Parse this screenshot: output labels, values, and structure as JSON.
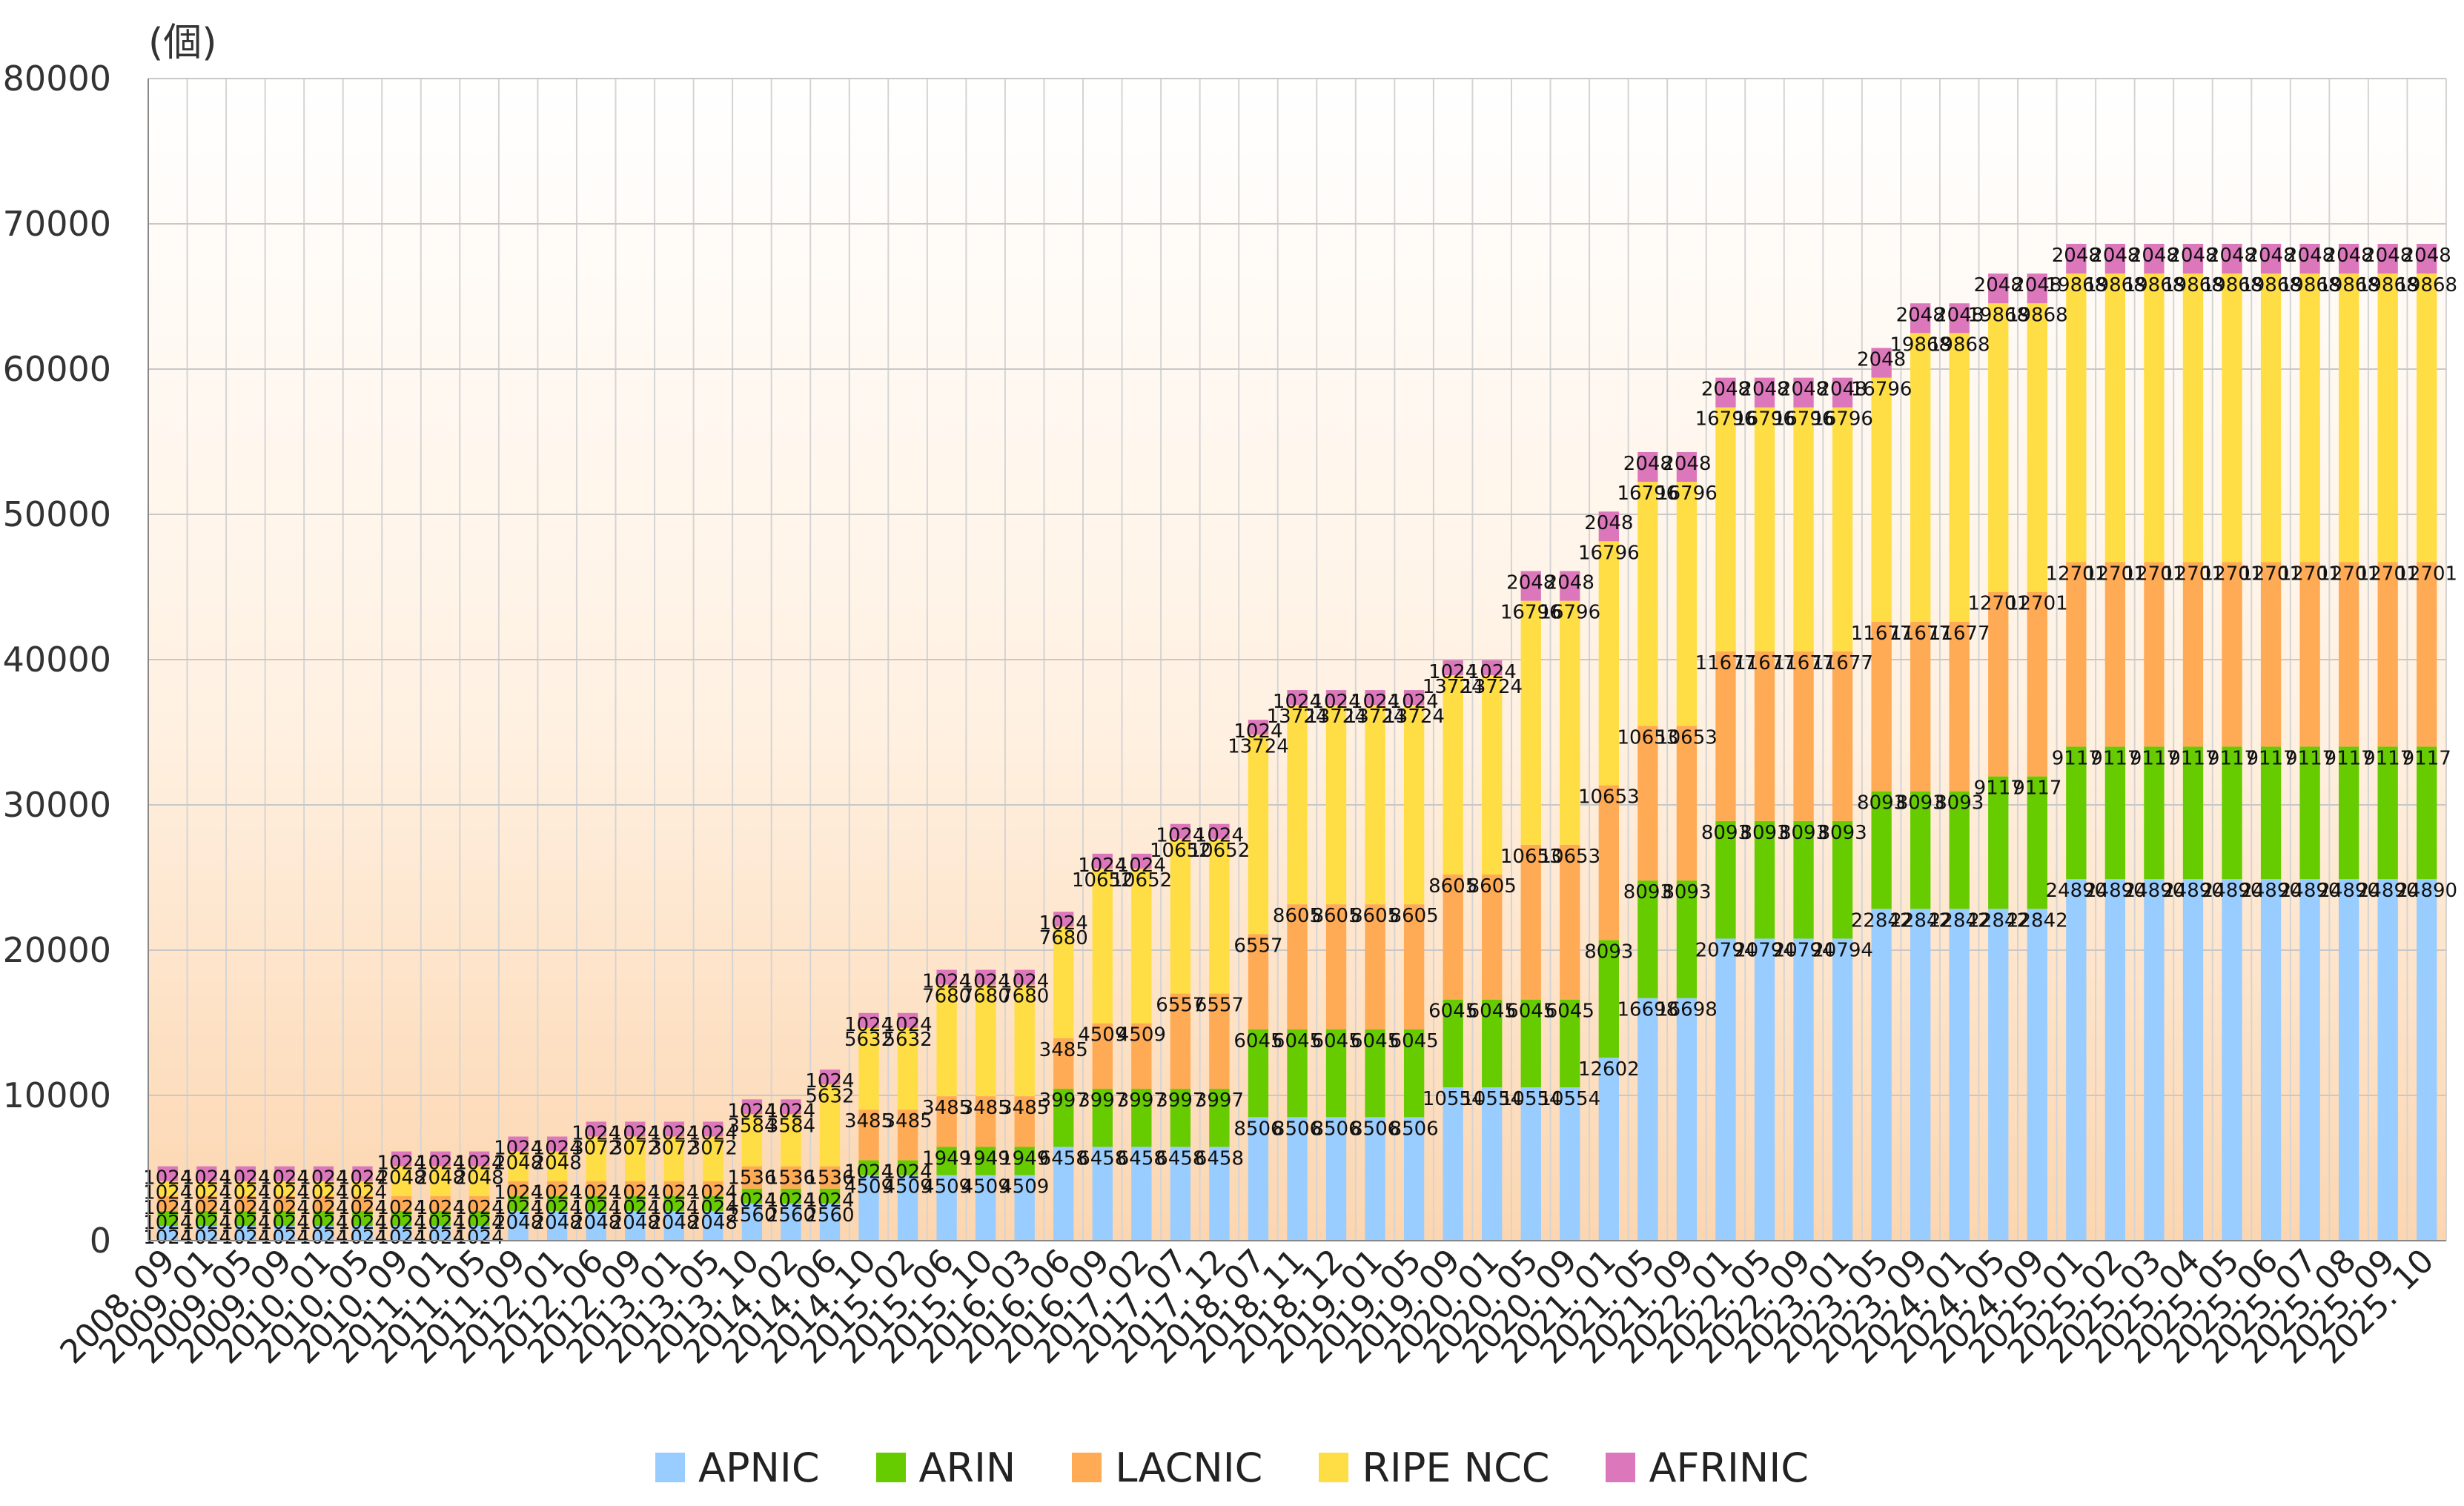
{
  "chart_data": {
    "type": "bar",
    "stacked": true,
    "title": "",
    "ylabel": "(個)",
    "xlabel": "",
    "ylim": [
      0,
      80000
    ],
    "yticks": [
      0,
      10000,
      20000,
      30000,
      40000,
      50000,
      60000,
      70000,
      80000
    ],
    "grid": true,
    "legend_position": "bottom",
    "categories": [
      "2008. 09",
      "2009. 01",
      "2009. 05",
      "2009. 09",
      "2010. 01",
      "2010. 05",
      "2010. 09",
      "2011. 01",
      "2011. 05",
      "2011. 09",
      "2012. 01",
      "2012. 06",
      "2012. 09",
      "2013. 01",
      "2013. 05",
      "2013. 10",
      "2014. 02",
      "2014. 06",
      "2014. 10",
      "2015. 02",
      "2015. 06",
      "2015. 10",
      "2016. 03",
      "2016. 06",
      "2016. 09",
      "2017. 02",
      "2017. 07",
      "2017. 12",
      "2018. 07",
      "2018. 11",
      "2018. 12",
      "2019. 01",
      "2019. 05",
      "2019. 09",
      "2020. 01",
      "2020. 05",
      "2020. 09",
      "2021. 01",
      "2021. 05",
      "2021. 09",
      "2022. 01",
      "2022. 05",
      "2022. 09",
      "2023. 01",
      "2023. 05",
      "2023. 09",
      "2024. 01",
      "2024. 05",
      "2024. 09",
      "2025. 01",
      "2025. 02",
      "2025. 03",
      "2025. 04",
      "2025. 05",
      "2025. 06",
      "2025. 07",
      "2025. 08",
      "2025. 09",
      "2025. 10"
    ],
    "series": [
      {
        "name": "APNIC",
        "color": "#99ccff",
        "values": [
          1024,
          1024,
          1024,
          1024,
          1024,
          1024,
          1024,
          1024,
          1024,
          2048,
          2048,
          2048,
          2048,
          2048,
          2048,
          2560,
          2560,
          2560,
          4509,
          4509,
          4509,
          4509,
          4509,
          6458,
          6458,
          6458,
          6458,
          6458,
          8506,
          8506,
          8506,
          8506,
          8506,
          10554,
          10554,
          10554,
          10554,
          12602,
          16698,
          16698,
          20794,
          20794,
          20794,
          20794,
          22842,
          22842,
          22842,
          22842,
          22842,
          24890,
          24890,
          24890,
          24890,
          24890,
          24890,
          24890,
          24890,
          24890,
          24890
        ]
      },
      {
        "name": "ARIN",
        "color": "#66cc00",
        "values": [
          1024,
          1024,
          1024,
          1024,
          1024,
          1024,
          1024,
          1024,
          1024,
          1024,
          1024,
          1024,
          1024,
          1024,
          1024,
          1024,
          1024,
          1024,
          1024,
          1024,
          1949,
          1949,
          1949,
          3997,
          3997,
          3997,
          3997,
          3997,
          6045,
          6045,
          6045,
          6045,
          6045,
          6045,
          6045,
          6045,
          6045,
          8093,
          8093,
          8093,
          8093,
          8093,
          8093,
          8093,
          8093,
          8093,
          8093,
          9117,
          9117,
          9117,
          9117,
          9117,
          9117,
          9117,
          9117,
          9117,
          9117,
          9117,
          9117
        ]
      },
      {
        "name": "LACNIC",
        "color": "#ffaa55",
        "values": [
          1024,
          1024,
          1024,
          1024,
          1024,
          1024,
          1024,
          1024,
          1024,
          1024,
          1024,
          1024,
          1024,
          1024,
          1024,
          1536,
          1536,
          1536,
          3485,
          3485,
          3485,
          3485,
          3485,
          3485,
          4509,
          4509,
          6557,
          6557,
          6557,
          8605,
          8605,
          8605,
          8605,
          8605,
          8605,
          10653,
          10653,
          10653,
          10653,
          10653,
          11677,
          11677,
          11677,
          11677,
          11677,
          11677,
          11677,
          12701,
          12701,
          12701,
          12701,
          12701,
          12701,
          12701,
          12701,
          12701,
          12701,
          12701,
          12701
        ]
      },
      {
        "name": "RIPE NCC",
        "color": "#ffdd44",
        "values": [
          1024,
          1024,
          1024,
          1024,
          1024,
          1024,
          2048,
          2048,
          2048,
          2048,
          2048,
          3072,
          3072,
          3072,
          3072,
          3584,
          3584,
          5632,
          5632,
          5632,
          7680,
          7680,
          7680,
          7680,
          10652,
          10652,
          10652,
          10652,
          13724,
          13724,
          13724,
          13724,
          13724,
          13724,
          13724,
          16796,
          16796,
          16796,
          16796,
          16796,
          16796,
          16796,
          16796,
          16796,
          16796,
          19868,
          19868,
          19868,
          19868,
          19868,
          19868,
          19868,
          19868,
          19868,
          19868,
          19868,
          19868,
          19868,
          19868
        ]
      },
      {
        "name": "AFRINIC",
        "color": "#dd77bb",
        "values": [
          1024,
          1024,
          1024,
          1024,
          1024,
          1024,
          1024,
          1024,
          1024,
          1024,
          1024,
          1024,
          1024,
          1024,
          1024,
          1024,
          1024,
          1024,
          1024,
          1024,
          1024,
          1024,
          1024,
          1024,
          1024,
          1024,
          1024,
          1024,
          1024,
          1024,
          1024,
          1024,
          1024,
          1024,
          1024,
          2048,
          2048,
          2048,
          2048,
          2048,
          2048,
          2048,
          2048,
          2048,
          2048,
          2048,
          2048,
          2048,
          2048,
          2048,
          2048,
          2048,
          2048,
          2048,
          2048,
          2048,
          2048,
          2048,
          2048
        ]
      }
    ]
  }
}
